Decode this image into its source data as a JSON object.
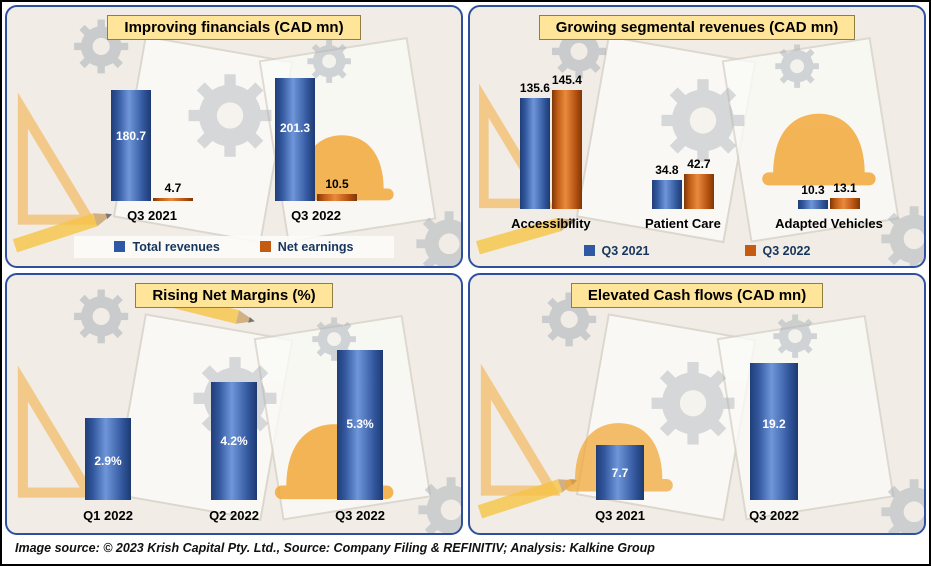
{
  "colors": {
    "bar_blue": "#3057a4",
    "bar_orange": "#c55a11",
    "title_highlight": "#ffe599",
    "panel_border": "#2e4f9e",
    "legend_text": "#17365d"
  },
  "footer": {
    "text": "Image source: © 2023 Krish Capital Pty. Ltd., Source: Company Filing & REFINITIV; Analysis: Kalkine Group"
  },
  "chart_data": [
    {
      "id": "improving-financials",
      "type": "bar",
      "title": "Improving financials (CAD mn)",
      "categories": [
        "Q3 2021",
        "Q3 2022"
      ],
      "series": [
        {
          "name": "Total revenues",
          "color": "blue",
          "values": [
            180.7,
            201.3
          ],
          "labels": [
            "180.7",
            "201.3"
          ],
          "label_pos": "inside"
        },
        {
          "name": "Net earnings",
          "color": "orange",
          "values": [
            4.7,
            10.5
          ],
          "labels": [
            "4.7",
            "10.5"
          ],
          "label_pos": "above"
        }
      ],
      "ylim": [
        0,
        210
      ],
      "grid": false,
      "legend": true,
      "legend_position": "bottom"
    },
    {
      "id": "growing-segmental-revenues",
      "type": "bar",
      "title": "Growing segmental revenues (CAD mn)",
      "categories": [
        "Accessibility",
        "Patient Care",
        "Adapted Vehicles"
      ],
      "series": [
        {
          "name": "Q3 2021",
          "color": "blue",
          "values": [
            135.6,
            34.8,
            10.3
          ],
          "labels": [
            "135.6",
            "34.8",
            "10.3"
          ],
          "label_pos": "above"
        },
        {
          "name": "Q3 2022",
          "color": "orange",
          "values": [
            145.4,
            42.7,
            13.1
          ],
          "labels": [
            "145.4",
            "42.7",
            "13.1"
          ],
          "label_pos": "above"
        }
      ],
      "ylim": [
        0,
        150
      ],
      "grid": false,
      "legend": true,
      "legend_position": "bottom"
    },
    {
      "id": "rising-net-margins",
      "type": "bar",
      "title": "Rising Net Margins (%)",
      "categories": [
        "Q1 2022",
        "Q2 2022",
        "Q3 2022"
      ],
      "series": [
        {
          "color": "blue",
          "values": [
            2.9,
            4.2,
            5.3
          ],
          "labels": [
            "2.9%",
            "4.2%",
            "5.3%"
          ],
          "label_pos": "inside"
        }
      ],
      "ylim": [
        0,
        5.6
      ],
      "grid": false,
      "legend": false
    },
    {
      "id": "elevated-cash-flows",
      "type": "bar",
      "title": "Elevated Cash flows (CAD mn)",
      "categories": [
        "Q3 2021",
        "Q3 2022"
      ],
      "series": [
        {
          "color": "blue",
          "values": [
            7.7,
            19.2
          ],
          "labels": [
            "7.7",
            "19.2"
          ],
          "label_pos": "inside"
        }
      ],
      "ylim": [
        0,
        21
      ],
      "grid": false,
      "legend": false
    }
  ]
}
